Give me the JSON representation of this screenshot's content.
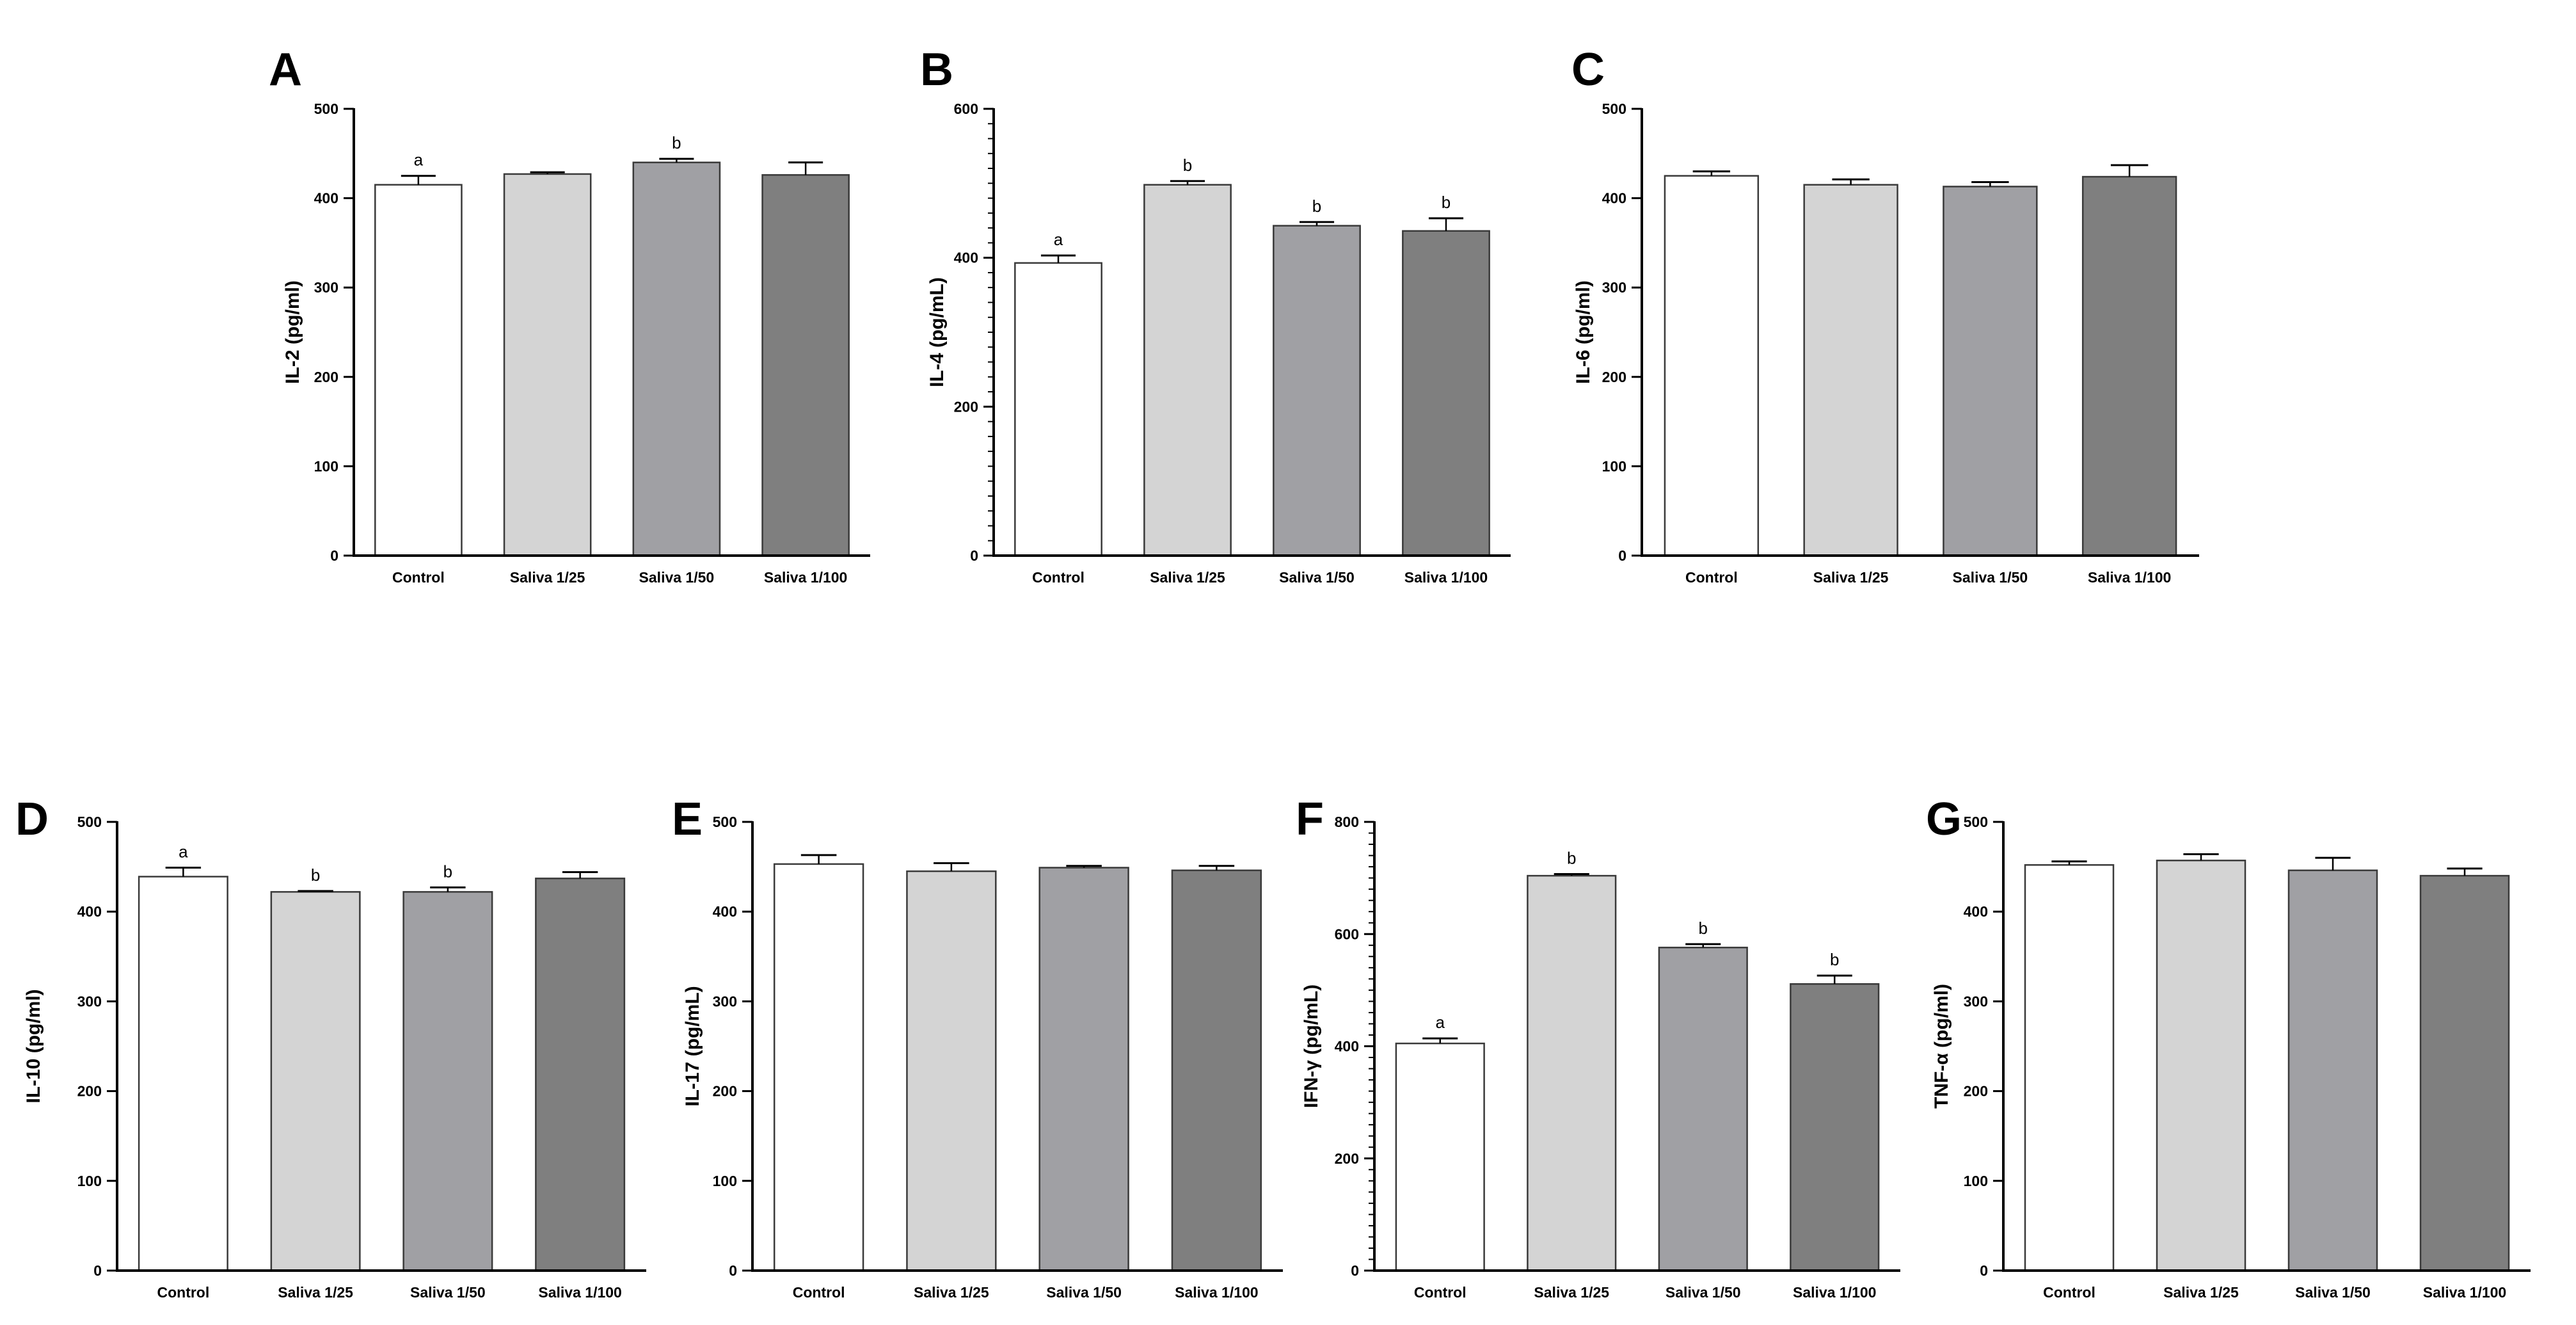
{
  "figure": {
    "bar_colors": [
      "#ffffff",
      "#d4d4d4",
      "#a0a0a4",
      "#7f7f7f"
    ],
    "edge_color": "#3a3a3a"
  },
  "chart_data": [
    {
      "panel": "A",
      "type": "bar",
      "categories": [
        "Control",
        "Saliva 1/25",
        "Saliva 1/50",
        "Saliva 1/100"
      ],
      "values": [
        415,
        427,
        440,
        426
      ],
      "errors": [
        10,
        2,
        4,
        14
      ],
      "significance": [
        "a",
        "",
        "b",
        ""
      ],
      "ylabel": "IL-2 (pg/ml)",
      "ylim": [
        0,
        500
      ],
      "yticks": [
        0,
        100,
        200,
        300,
        400,
        500
      ],
      "minor_step": 0
    },
    {
      "panel": "B",
      "type": "bar",
      "categories": [
        "Control",
        "Saliva 1/25",
        "Saliva 1/50",
        "Saliva 1/100"
      ],
      "values": [
        393,
        498,
        443,
        436
      ],
      "errors": [
        10,
        5,
        5,
        17
      ],
      "significance": [
        "a",
        "b",
        "b",
        "b"
      ],
      "ylabel": "IL-4 (pg/mL)",
      "ylim": [
        0,
        600
      ],
      "yticks": [
        0,
        200,
        400,
        600
      ],
      "minor_step": 20
    },
    {
      "panel": "C",
      "type": "bar",
      "categories": [
        "Control",
        "Saliva 1/25",
        "Saliva 1/50",
        "Saliva 1/100"
      ],
      "values": [
        425,
        415,
        413,
        424
      ],
      "errors": [
        5,
        6,
        5,
        13
      ],
      "significance": [
        "",
        "",
        "",
        ""
      ],
      "ylabel": "IL-6 (pg/ml)",
      "ylim": [
        0,
        500
      ],
      "yticks": [
        0,
        100,
        200,
        300,
        400,
        500
      ],
      "minor_step": 0
    },
    {
      "panel": "D",
      "type": "bar",
      "categories": [
        "Control",
        "Saliva 1/25",
        "Saliva 1/50",
        "Saliva 1/100"
      ],
      "values": [
        439,
        422,
        422,
        437
      ],
      "errors": [
        10,
        1,
        5,
        7
      ],
      "significance": [
        "a",
        "b",
        "b",
        ""
      ],
      "ylabel": "IL-10 (pg/ml)",
      "ylim": [
        0,
        500
      ],
      "yticks": [
        0,
        100,
        200,
        300,
        400,
        500
      ],
      "minor_step": 0
    },
    {
      "panel": "E",
      "type": "bar",
      "categories": [
        "Control",
        "Saliva 1/25",
        "Saliva 1/50",
        "Saliva 1/100"
      ],
      "values": [
        453,
        445,
        449,
        446
      ],
      "errors": [
        10,
        9,
        2,
        5
      ],
      "significance": [
        "",
        "",
        "",
        ""
      ],
      "ylabel": "IL-17 (pg/mL)",
      "ylim": [
        0,
        500
      ],
      "yticks": [
        0,
        100,
        200,
        300,
        400,
        500
      ],
      "minor_step": 0
    },
    {
      "panel": "F",
      "type": "bar",
      "categories": [
        "Control",
        "Saliva 1/25",
        "Saliva 1/50",
        "Saliva 1/100"
      ],
      "values": [
        405,
        704,
        576,
        511
      ],
      "errors": [
        9,
        3,
        6,
        15
      ],
      "significance": [
        "a",
        "b",
        "b",
        "b"
      ],
      "ylabel": "IFN-γ (pg/mL)",
      "ylim": [
        0,
        800
      ],
      "yticks": [
        0,
        200,
        400,
        600,
        800
      ],
      "minor_step": 20
    },
    {
      "panel": "G",
      "type": "bar",
      "categories": [
        "Control",
        "Saliva 1/25",
        "Saliva 1/50",
        "Saliva 1/100"
      ],
      "values": [
        452,
        457,
        446,
        440
      ],
      "errors": [
        4,
        7,
        14,
        8
      ],
      "significance": [
        "",
        "",
        "",
        ""
      ],
      "ylabel": "TNF-α (pg/ml)",
      "ylim": [
        0,
        500
      ],
      "yticks": [
        0,
        100,
        200,
        300,
        400,
        500
      ],
      "minor_step": 0
    }
  ]
}
